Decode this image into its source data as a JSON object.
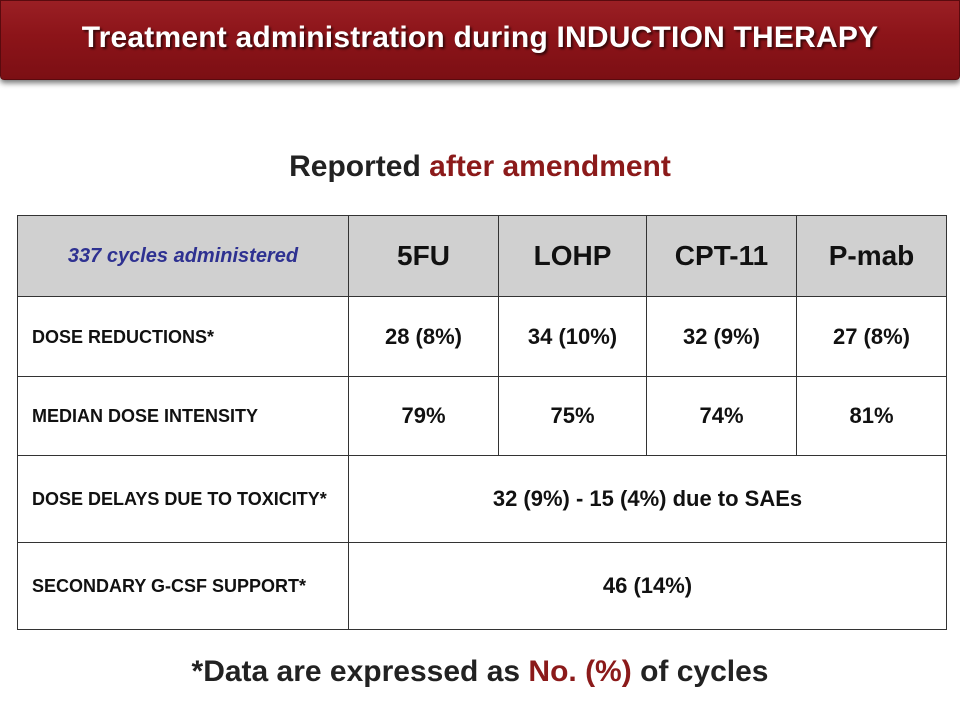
{
  "header": {
    "title": "Treatment administration during INDUCTION THERAPY"
  },
  "subtitle": {
    "part1": "Reported ",
    "part2": "after amendment"
  },
  "table": {
    "corner": "337 cycles administered",
    "columns": [
      "5FU",
      "LOHP",
      "CPT-11",
      "P-mab"
    ],
    "rows": [
      {
        "label": "DOSE REDUCTIONS*",
        "values": [
          "28 (8%)",
          "34 (10%)",
          "32 (9%)",
          "27 (8%)"
        ]
      },
      {
        "label": "MEDIAN DOSE INTENSITY",
        "values": [
          "79%",
          "75%",
          "74%",
          "81%"
        ]
      },
      {
        "label": "DOSE DELAYS DUE TO TOXICITY*",
        "merged": "32 (9%) - 15 (4%) due to SAEs"
      },
      {
        "label": "SECONDARY G-CSF SUPPORT*",
        "merged": "46 (14%)"
      }
    ]
  },
  "footnote": {
    "part1": "*Data are expressed as ",
    "part2": "No. (%)",
    "part3": " of cycles"
  },
  "colors": {
    "title_bar": "#8c1419",
    "accent": "#8b1a1a",
    "corner_text": "#2e3191",
    "header_fill": "#d0d0d0"
  }
}
